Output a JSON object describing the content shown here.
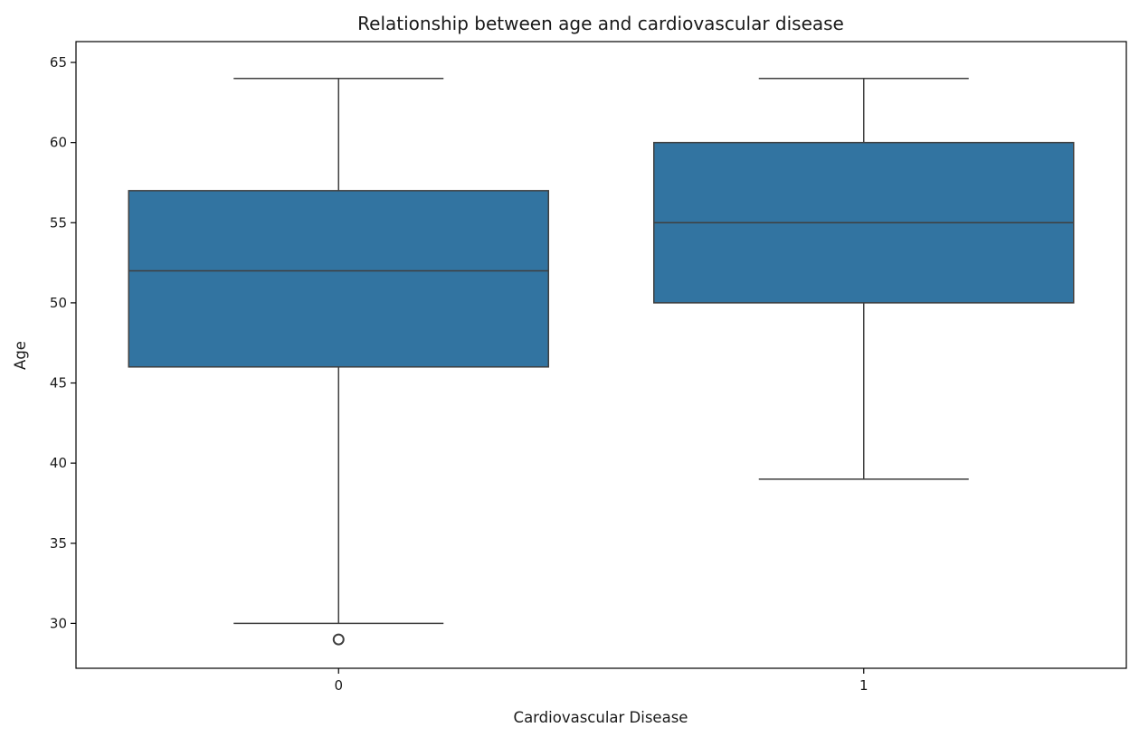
{
  "chart_data": {
    "type": "box",
    "title": "Relationship between age and cardiovascular disease",
    "xlabel": "Cardiovascular Disease",
    "ylabel": "Age",
    "categories": [
      "0",
      "1"
    ],
    "ylim": [
      27.2,
      66.3
    ],
    "yticks": [
      30,
      35,
      40,
      45,
      50,
      55,
      60,
      65
    ],
    "grid": false,
    "box_color": "#3274a1",
    "line_color": "#3f3f3f",
    "boxes": [
      {
        "category": "0",
        "whisker_low": 30,
        "q1": 46,
        "median": 52,
        "q3": 57,
        "whisker_high": 64,
        "outliers": [
          29
        ]
      },
      {
        "category": "1",
        "whisker_low": 39,
        "q1": 50,
        "median": 55,
        "q3": 60,
        "whisker_high": 64,
        "outliers": []
      }
    ]
  }
}
